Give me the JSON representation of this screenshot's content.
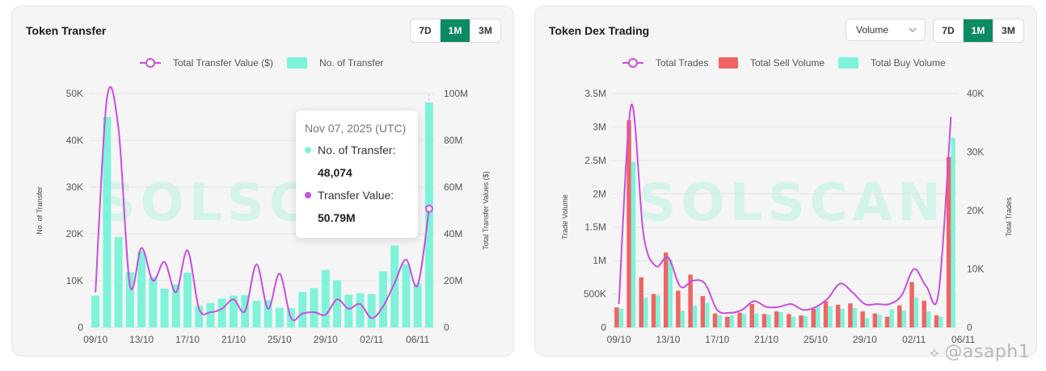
{
  "left_panel": {
    "title": "Token Transfer",
    "ranges": [
      "7D",
      "1M",
      "3M"
    ],
    "active_range": "1M",
    "tooltip": {
      "date": "Nov 07, 2025 (UTC)",
      "transfers_label": "No. of Transfer:",
      "transfers_value": "48,074",
      "value_label": "Transfer Value:",
      "value_value": "50.79M"
    }
  },
  "right_panel": {
    "title": "Token Dex Trading",
    "select_value": "Volume",
    "ranges": [
      "7D",
      "1M",
      "3M"
    ],
    "active_range": "1M"
  },
  "colors": {
    "accent": "#0b8a64",
    "bar_mint": "#7ff3d9",
    "line_purple": "#c94ee0",
    "bar_red": "#ee6464",
    "watermark_mint": "#d4f3ea"
  },
  "chart_data": [
    {
      "type": "bar",
      "title": "Token Transfer",
      "watermark": "SOLSCAN",
      "ylabel": "No. of Transfer",
      "y2label": "Total Transfer Values ($)",
      "ylim": [
        0,
        50000
      ],
      "y2lim": [
        0,
        100000000
      ],
      "yticks": [
        "0",
        "10K",
        "20K",
        "30K",
        "40K",
        "50K"
      ],
      "y2ticks": [
        "0",
        "20M",
        "40M",
        "60M",
        "80M",
        "100M"
      ],
      "xtick_labels": [
        "09/10",
        "13/10",
        "17/10",
        "21/10",
        "25/10",
        "29/10",
        "02/11",
        "06/11"
      ],
      "xtick_index": [
        0,
        4,
        8,
        12,
        16,
        20,
        24,
        28
      ],
      "legend": [
        "Total Transfer Value ($)",
        "No. of Transfer"
      ],
      "highlight_index": 29,
      "series": [
        {
          "name": "No. of Transfer",
          "axis": "left",
          "kind": "bar",
          "values": [
            6800,
            45000,
            19300,
            11800,
            16300,
            10800,
            8300,
            9200,
            11700,
            4600,
            5200,
            6200,
            6800,
            6900,
            5700,
            5800,
            4200,
            4100,
            7600,
            8400,
            12300,
            10100,
            7000,
            7300,
            7100,
            12000,
            17500,
            13500,
            9400,
            48074
          ]
        },
        {
          "name": "Total Transfer Value ($)",
          "axis": "right",
          "kind": "line",
          "values": [
            15000000,
            98000000,
            85000000,
            18000000,
            34000000,
            20000000,
            28000000,
            15000000,
            33000000,
            8000000,
            6500000,
            8000000,
            12000000,
            7000000,
            27000000,
            8000000,
            23000000,
            4000000,
            6000000,
            6500000,
            5500000,
            12000000,
            8000000,
            10000000,
            4000000,
            9000000,
            19000000,
            29000000,
            18000000,
            50790000
          ]
        }
      ]
    },
    {
      "type": "bar",
      "title": "Token Dex Trading",
      "watermark": "SOLSCAN",
      "ylabel": "Trade Volume",
      "y2label": "Total Trades",
      "ylim": [
        0,
        3500000
      ],
      "y2lim": [
        0,
        40000
      ],
      "yticks": [
        "0",
        "500K",
        "1M",
        "1.5M",
        "2M",
        "2.5M",
        "3M",
        "3.5M"
      ],
      "y2ticks": [
        "0",
        "10K",
        "20K",
        "30K",
        "40K"
      ],
      "xtick_labels": [
        "09/10",
        "13/10",
        "17/10",
        "21/10",
        "25/10",
        "29/10",
        "02/11",
        "06/11"
      ],
      "xtick_index": [
        0,
        4,
        8,
        12,
        16,
        20,
        24,
        28
      ],
      "legend": [
        "Total Trades",
        "Total Sell Volume",
        "Total Buy Volume"
      ],
      "series": [
        {
          "name": "Total Sell Volume",
          "axis": "left",
          "kind": "bar",
          "values": [
            300000,
            3100000,
            750000,
            500000,
            1120000,
            550000,
            790000,
            470000,
            210000,
            160000,
            220000,
            350000,
            200000,
            240000,
            200000,
            180000,
            280000,
            390000,
            340000,
            360000,
            240000,
            210000,
            160000,
            330000,
            680000,
            400000,
            180000,
            2550000
          ]
        },
        {
          "name": "Total Buy Volume",
          "axis": "left",
          "kind": "bar",
          "values": [
            280000,
            2480000,
            450000,
            480000,
            1020000,
            250000,
            330000,
            370000,
            180000,
            180000,
            200000,
            210000,
            190000,
            230000,
            160000,
            170000,
            310000,
            320000,
            280000,
            290000,
            140000,
            190000,
            270000,
            250000,
            450000,
            240000,
            160000,
            2840000
          ]
        },
        {
          "name": "Total Trades",
          "axis": "right",
          "kind": "line",
          "values": [
            4000,
            38000,
            16000,
            10500,
            12000,
            7000,
            8000,
            7500,
            3000,
            2500,
            3000,
            4500,
            3500,
            3500,
            4000,
            3000,
            3500,
            5000,
            7500,
            6000,
            4000,
            4000,
            4000,
            5500,
            10000,
            7000,
            6000,
            36000
          ]
        }
      ]
    }
  ]
}
